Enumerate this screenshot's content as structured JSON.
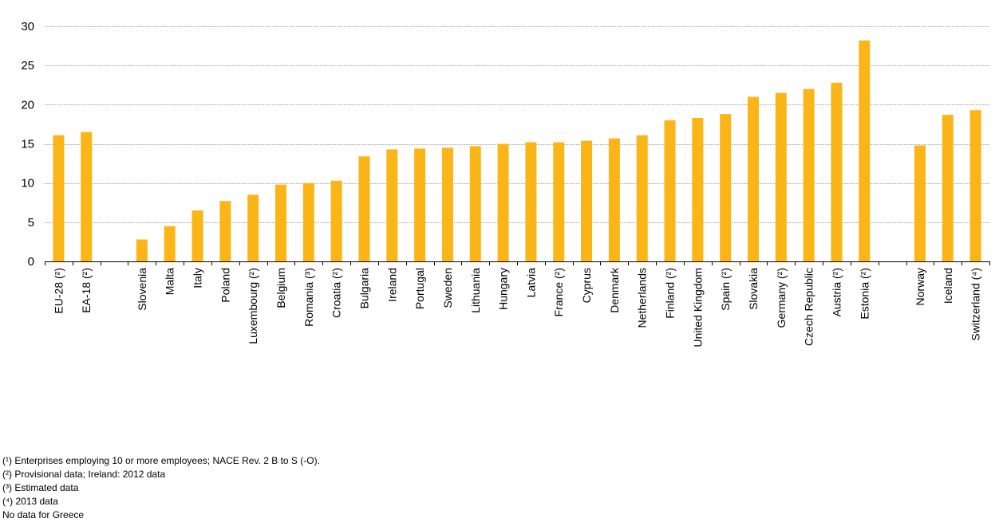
{
  "chart_data": {
    "type": "bar",
    "categories": [
      "EU-28 (²)",
      "EA-18 (²)",
      "",
      "Slovenia",
      "Malta",
      "Italy",
      "Poland",
      "Luxembourg (²)",
      "Belgium",
      "Romania (³)",
      "Croatia (²)",
      "Bulgaria",
      "Ireland",
      "Portugal",
      "Sweden",
      "Lithuania",
      "Hungary",
      "Latvia",
      "France (²)",
      "Cyprus",
      "Denmark",
      "Netherlands",
      "Finland (²)",
      "United Kingdom",
      "Spain (²)",
      "Slovakia",
      "Germany (²)",
      "Czech Republic",
      "Austria (²)",
      "Estonia (²)",
      "",
      "Norway",
      "Iceland",
      "Switzerland (⁴)"
    ],
    "values": [
      16.1,
      16.5,
      null,
      2.8,
      4.5,
      6.5,
      7.7,
      8.5,
      9.8,
      10.0,
      10.3,
      13.4,
      14.3,
      14.4,
      14.5,
      14.7,
      15.0,
      15.2,
      15.2,
      15.4,
      15.7,
      16.1,
      18.0,
      18.3,
      18.8,
      21.0,
      21.5,
      22.0,
      22.8,
      28.2,
      null,
      14.8,
      18.7,
      19.3
    ],
    "ylim": [
      0,
      30
    ],
    "yticks": [
      0,
      5,
      10,
      15,
      20,
      25,
      30
    ],
    "grid": true,
    "bar_color": "#FBB517",
    "grid_color": "#b4b4b4"
  },
  "footnotes": [
    "(¹) Enterprises employing 10 or more employees; NACE Rev. 2 B to S (-O).",
    "(²) Provisional data; Ireland: 2012 data",
    "(³) Estimated data",
    "(⁴) 2013 data",
    "No data for Greece"
  ]
}
